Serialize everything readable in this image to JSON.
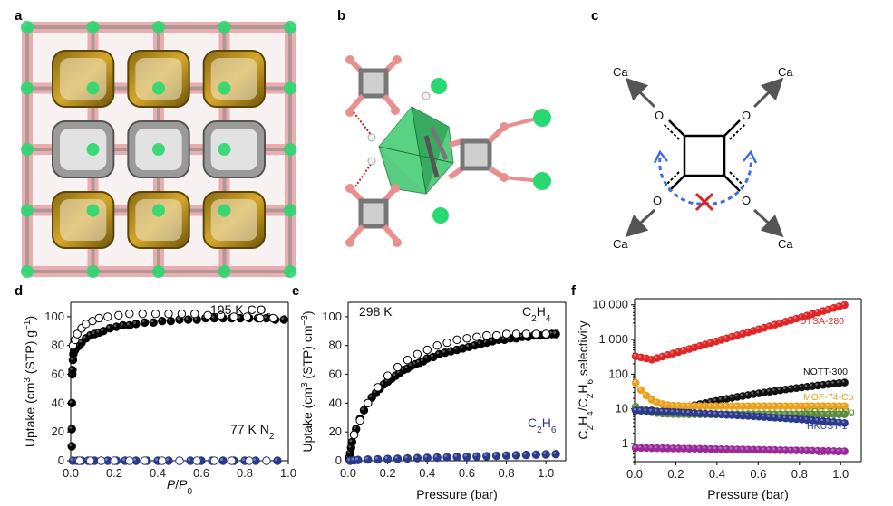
{
  "figure": {
    "panel_labels": [
      "a",
      "b",
      "c",
      "d",
      "e",
      "f"
    ]
  },
  "panel_c": {
    "ca_labels": [
      "Ca",
      "Ca",
      "Ca",
      "Ca"
    ],
    "o_labels": [
      "O",
      "O",
      "O",
      "O"
    ],
    "colors": {
      "arrow": "#555555",
      "dash": "#3b6fe0",
      "cross": "#e02020"
    }
  },
  "chart_data": [
    {
      "id": "d",
      "type": "scatter",
      "xlabel": "P/P0",
      "ylabel": "Uptake (cm3 (STP) g−1)",
      "xlim": [
        0,
        1.0
      ],
      "ylim": [
        0,
        110
      ],
      "xticks": [
        "0.0",
        "0.2",
        "0.4",
        "0.6",
        "0.8",
        "1.0"
      ],
      "yticks": [
        "0",
        "20",
        "40",
        "60",
        "80",
        "100"
      ],
      "annotations": [
        "195 K CO2",
        "77 K N2"
      ],
      "series": [
        {
          "name": "CO2 adsorption",
          "color": "#000000",
          "filled": true,
          "x": [
            0.005,
            0.005,
            0.006,
            0.007,
            0.008,
            0.01,
            0.012,
            0.015,
            0.02,
            0.03,
            0.04,
            0.05,
            0.07,
            0.09,
            0.11,
            0.13,
            0.15,
            0.18,
            0.21,
            0.24,
            0.27,
            0.3,
            0.34,
            0.38,
            0.42,
            0.46,
            0.5,
            0.54,
            0.58,
            0.62,
            0.66,
            0.7,
            0.74,
            0.78,
            0.82,
            0.86,
            0.9,
            0.94,
            0.98
          ],
          "y": [
            10,
            22,
            40,
            60,
            63,
            70,
            74,
            76,
            77,
            79,
            80,
            82,
            85,
            87,
            88,
            89,
            90,
            92,
            93,
            94,
            94,
            95,
            96,
            96,
            97,
            97,
            98,
            98,
            98,
            99,
            99,
            99,
            99,
            99,
            99,
            99,
            99,
            98,
            98
          ]
        },
        {
          "name": "CO2 desorption",
          "color": "#000000",
          "filled": false,
          "x": [
            0.01,
            0.02,
            0.03,
            0.05,
            0.07,
            0.1,
            0.13,
            0.17,
            0.22,
            0.27,
            0.33,
            0.39,
            0.45,
            0.51,
            0.57,
            0.63,
            0.69,
            0.75,
            0.81,
            0.87,
            0.93
          ],
          "y": [
            80,
            84,
            88,
            92,
            95,
            97,
            99,
            100,
            101,
            102,
            102,
            102,
            102,
            102,
            102,
            101,
            101,
            100,
            100,
            99,
            99
          ]
        },
        {
          "name": "N2 adsorption",
          "color": "#2a3a8c",
          "filled": true,
          "x": [
            0.01,
            0.03,
            0.05,
            0.08,
            0.11,
            0.14,
            0.17,
            0.21,
            0.25,
            0.3,
            0.35,
            0.4,
            0.45,
            0.5,
            0.55,
            0.6,
            0.65,
            0.7,
            0.75,
            0.8,
            0.85,
            0.9,
            0.95
          ],
          "y": [
            0,
            0,
            0,
            0,
            0,
            0,
            0,
            0,
            0,
            0,
            0,
            0,
            0,
            0,
            0,
            0,
            0,
            0,
            0,
            0,
            0,
            0,
            0
          ]
        },
        {
          "name": "N2 desorption",
          "color": "#2a3a8c",
          "filled": false,
          "x": [
            0.04,
            0.09,
            0.14,
            0.2,
            0.27,
            0.34,
            0.42,
            0.5,
            0.58,
            0.66,
            0.74,
            0.82,
            0.9
          ],
          "y": [
            0,
            0,
            0,
            0,
            0,
            0,
            0,
            0,
            0,
            0,
            0,
            0,
            0
          ]
        }
      ]
    },
    {
      "id": "e",
      "type": "scatter",
      "xlabel": "Pressure (bar)",
      "ylabel": "Uptake (cm3 (STP) cm−3)",
      "xlim": [
        0,
        1.1
      ],
      "ylim": [
        0,
        110
      ],
      "xticks": [
        "0.0",
        "0.2",
        "0.4",
        "0.6",
        "0.8",
        "1.0"
      ],
      "yticks": [
        "0",
        "20",
        "40",
        "60",
        "80",
        "100"
      ],
      "annotations": [
        "298 K",
        "C2H4",
        "C2H6"
      ],
      "series": [
        {
          "name": "C2H4 adsorption",
          "color": "#000000",
          "filled": true,
          "x": [
            0.005,
            0.01,
            0.015,
            0.02,
            0.03,
            0.04,
            0.06,
            0.08,
            0.1,
            0.12,
            0.14,
            0.16,
            0.18,
            0.2,
            0.22,
            0.24,
            0.26,
            0.28,
            0.3,
            0.32,
            0.34,
            0.36,
            0.38,
            0.4,
            0.43,
            0.46,
            0.49,
            0.52,
            0.55,
            0.58,
            0.61,
            0.64,
            0.67,
            0.7,
            0.73,
            0.76,
            0.79,
            0.82,
            0.85,
            0.88,
            0.91,
            0.94,
            0.97,
            1.0,
            1.03,
            1.05
          ],
          "y": [
            2,
            5,
            9,
            13,
            18,
            22,
            29,
            35,
            40,
            44,
            47,
            50,
            53,
            55,
            57,
            59,
            61,
            63,
            64,
            66,
            67,
            68,
            69,
            71,
            72,
            74,
            75,
            76,
            77,
            78,
            79,
            80,
            81,
            82,
            83,
            84,
            84,
            85,
            85,
            86,
            86,
            87,
            87,
            87,
            88,
            88
          ]
        },
        {
          "name": "C2H4 desorption",
          "color": "#000000",
          "filled": false,
          "x": [
            0.03,
            0.06,
            0.1,
            0.15,
            0.2,
            0.25,
            0.3,
            0.35,
            0.4,
            0.45,
            0.5,
            0.55,
            0.6,
            0.65,
            0.7,
            0.75,
            0.8,
            0.85,
            0.9,
            0.95,
            1.0
          ],
          "y": [
            18,
            28,
            40,
            51,
            59,
            65,
            70,
            74,
            77,
            80,
            82,
            84,
            85,
            86,
            87,
            87,
            88,
            88,
            88,
            88,
            88
          ]
        },
        {
          "name": "C2H6 adsorption",
          "color": "#2a3a8c",
          "filled": true,
          "x": [
            0.01,
            0.03,
            0.05,
            0.1,
            0.15,
            0.2,
            0.25,
            0.3,
            0.35,
            0.4,
            0.45,
            0.5,
            0.55,
            0.6,
            0.65,
            0.7,
            0.75,
            0.8,
            0.85,
            0.9,
            0.95,
            1.0,
            1.05
          ],
          "y": [
            0,
            0.3,
            0.5,
            0.8,
            1,
            1.2,
            1.4,
            1.6,
            1.8,
            2,
            2.2,
            2.4,
            2.6,
            2.8,
            3,
            3.2,
            3.4,
            3.6,
            3.8,
            4,
            4.2,
            4.4,
            4.6
          ]
        }
      ]
    },
    {
      "id": "f",
      "type": "scatter",
      "xlabel": "Pressure (bar)",
      "ylabel": "C2H4/C2H6 selectivity",
      "yscale": "log",
      "xlim": [
        0,
        1.1
      ],
      "ylim": [
        0.3,
        15000
      ],
      "xticks": [
        "0.0",
        "0.2",
        "0.4",
        "0.6",
        "0.8",
        "1.0"
      ],
      "yticks": [
        "1",
        "10",
        "100",
        "1,000",
        "10,000"
      ],
      "series": [
        {
          "name": "UTSA-280",
          "color": "#e02626",
          "filled": true
        },
        {
          "name": "NOTT-300",
          "color": "#111111",
          "filled": true
        },
        {
          "name": "MOF-74-Co",
          "color": "#e8a21c",
          "filled": true
        },
        {
          "name": "MOF-74-Mg",
          "color": "#5a8a3a",
          "filled": true
        },
        {
          "name": "HKUST-1",
          "color": "#2a3a8c",
          "filled": true
        },
        {
          "name": "ZIF-8",
          "color": "#9a2a9a",
          "filled": true
        }
      ]
    }
  ]
}
